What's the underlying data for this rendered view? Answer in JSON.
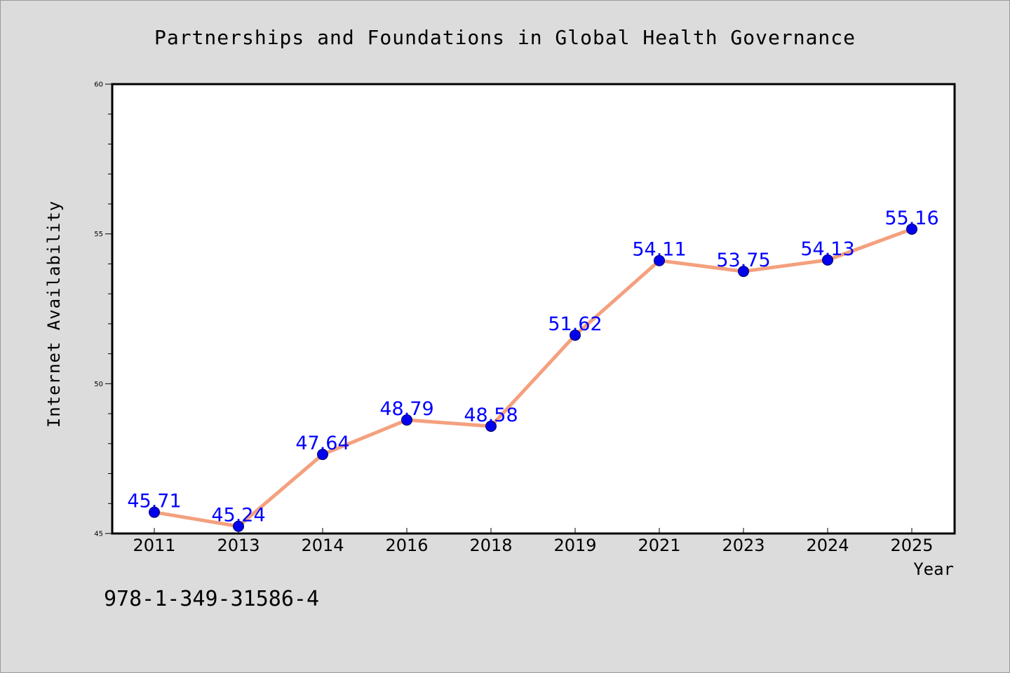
{
  "chart_data": {
    "type": "line",
    "title": "Partnerships and Foundations in Global Health Governance",
    "xlabel": "Year",
    "ylabel": "Internet Availability",
    "categories": [
      "2011",
      "2013",
      "2014",
      "2016",
      "2018",
      "2019",
      "2021",
      "2023",
      "2024",
      "2025"
    ],
    "series": [
      {
        "values": [
          45.71,
          45.24,
          47.64,
          48.79,
          48.58,
          51.62,
          54.11,
          53.75,
          54.13,
          55.16
        ],
        "data_labels": [
          "45.71",
          "45.24",
          "47.64",
          "48.79",
          "48.58",
          "51.62",
          "54.11",
          "53.75",
          "54.13",
          "55.16"
        ]
      }
    ],
    "ylim": [
      45,
      60
    ],
    "y_major_ticks": [
      45,
      50,
      55,
      60
    ],
    "y_tick_labels": [
      "45",
      "50",
      "55",
      "60"
    ],
    "grid": false,
    "line_color": "#f4a07e",
    "marker_color": "#0000ee",
    "label_color": "#0000ff",
    "background_color": "#dcdcdc",
    "plot_background_color": "#ffffff"
  },
  "footer": {
    "code": "978-1-349-31586-4"
  }
}
